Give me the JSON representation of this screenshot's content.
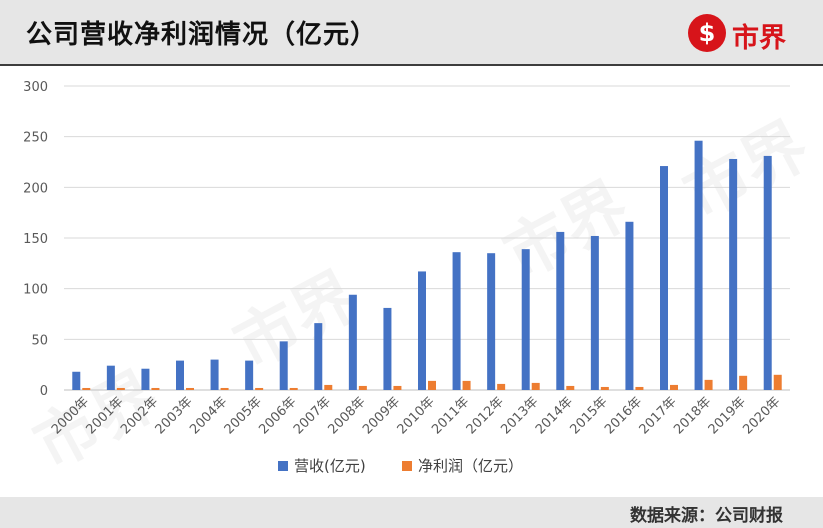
{
  "header": {
    "title": "公司营收净利润情况（亿元）",
    "logo_text": "市界",
    "logo_mark": "$"
  },
  "footer": {
    "source": "数据来源：公司财报"
  },
  "watermark": "市界",
  "colors": {
    "revenue": "#4472c4",
    "profit": "#ed7d31",
    "brand_red": "#d7141a"
  },
  "chart_data": {
    "type": "bar",
    "categories": [
      "2000年",
      "2001年",
      "2002年",
      "2003年",
      "2004年",
      "2005年",
      "2006年",
      "2007年",
      "2008年",
      "2009年",
      "2010年",
      "2011年",
      "2012年",
      "2013年",
      "2014年",
      "2015年",
      "2016年",
      "2017年",
      "2018年",
      "2019年",
      "2020年"
    ],
    "series": [
      {
        "name": "营收(亿元)",
        "values": [
          18,
          24,
          21,
          29,
          30,
          29,
          48,
          66,
          94,
          81,
          117,
          136,
          135,
          139,
          156,
          152,
          166,
          221,
          246,
          228,
          231
        ]
      },
      {
        "name": "净利润（亿元）",
        "values": [
          2,
          2,
          2,
          2,
          2,
          2,
          2,
          5,
          4,
          4,
          9,
          9,
          6,
          7,
          4,
          3,
          3,
          5,
          10,
          14,
          15
        ]
      }
    ],
    "yticks": [
      0,
      50,
      100,
      150,
      200,
      250,
      300
    ],
    "ylim": [
      0,
      300
    ],
    "grid": true,
    "legend_position": "bottom"
  }
}
